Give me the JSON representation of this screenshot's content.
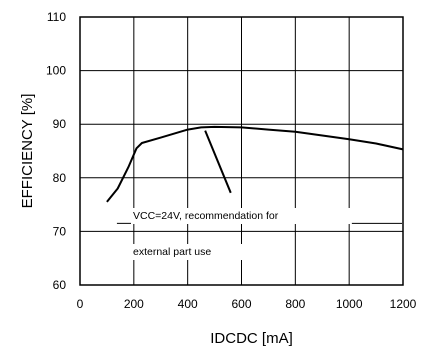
{
  "chart_data": {
    "type": "line",
    "title": "",
    "xlabel": "IDCDC [mA]",
    "ylabel": "EFFICIENCY [%]",
    "xlim": [
      0,
      1200
    ],
    "ylim": [
      60,
      110
    ],
    "xticks": [
      0,
      200,
      400,
      600,
      800,
      1000,
      1200
    ],
    "yticks": [
      60,
      70,
      80,
      90,
      100,
      110
    ],
    "x_tick_labels": [
      "0",
      "200",
      "400",
      "600",
      "800",
      "1000",
      "1200"
    ],
    "y_tick_labels": [
      "60",
      "70",
      "80",
      "90",
      "100",
      "110"
    ],
    "grid": true,
    "series": [
      {
        "x": [
          100,
          140,
          180,
          210,
          230,
          300,
          400,
          450,
          500,
          600,
          700,
          800,
          900,
          1000,
          1100,
          1200
        ],
        "values": [
          75.5,
          78.0,
          82.0,
          85.5,
          86.5,
          87.5,
          89.0,
          89.4,
          89.5,
          89.4,
          89.0,
          88.6,
          87.9,
          87.2,
          86.4,
          85.3
        ]
      }
    ],
    "annotation": {
      "line1": "VCC=24V, recommendation   for",
      "line2": "external part use",
      "arrow": {
        "from": [
          465,
          88.8
        ],
        "to": [
          560,
          77.2
        ]
      }
    }
  }
}
